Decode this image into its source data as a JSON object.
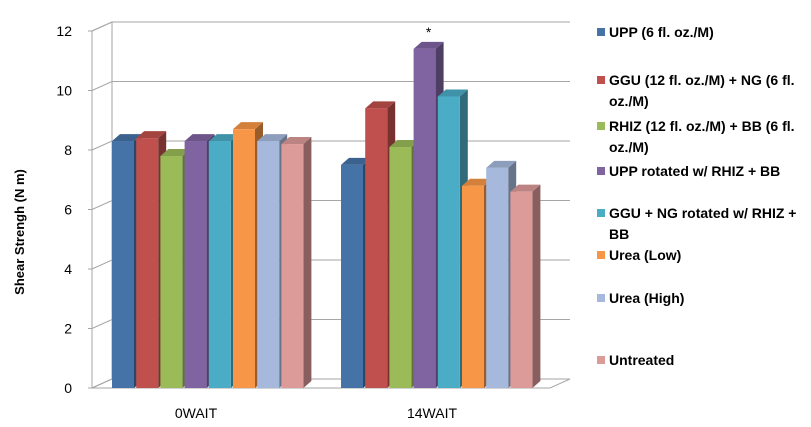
{
  "chart_data": {
    "type": "bar",
    "title": "",
    "xlabel": "",
    "ylabel": "Shear Strengh (N m)",
    "ylim": [
      0,
      12
    ],
    "yticks": [
      0,
      2,
      4,
      6,
      8,
      10,
      12
    ],
    "grid": true,
    "legend_position": "right",
    "categories": [
      "0WAIT",
      "14WAIT"
    ],
    "series": [
      {
        "name": "UPP (6 fl. oz./M)",
        "color": "#4572A7",
        "values": [
          8.3,
          7.5
        ]
      },
      {
        "name": "GGU (12 fl. oz./M) + NG (6 fl. oz./M)",
        "color": "#C0504D",
        "values": [
          8.4,
          9.4
        ]
      },
      {
        "name": "RHIZ (12 fl. oz./M) + BB (6 fl. oz./M)",
        "color": "#9BBB59",
        "values": [
          7.8,
          8.1
        ]
      },
      {
        "name": "UPP rotated w/ RHIZ + BB",
        "color": "#8064A2",
        "values": [
          8.3,
          11.4
        ]
      },
      {
        "name": "GGU + NG rotated w/ RHIZ + BB",
        "color": "#4BACC6",
        "values": [
          8.3,
          9.8
        ]
      },
      {
        "name": "Urea (Low)",
        "color": "#F79646",
        "values": [
          8.7,
          6.8
        ]
      },
      {
        "name": "Urea (High)",
        "color": "#A6B9DD",
        "values": [
          8.3,
          7.4
        ]
      },
      {
        "name": "Untreated",
        "color": "#DC9A98",
        "values": [
          8.2,
          6.6
        ]
      }
    ],
    "annotations": [
      {
        "text": "*",
        "category": "14WAIT",
        "series": "UPP rotated w/ RHIZ + BB"
      }
    ]
  }
}
